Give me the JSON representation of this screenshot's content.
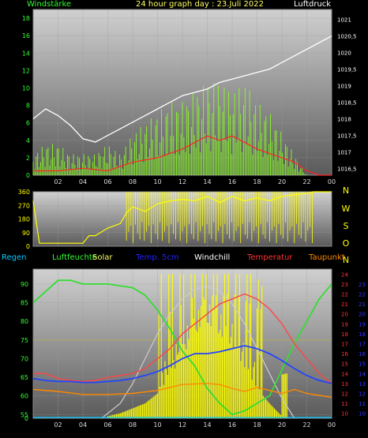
{
  "header": {
    "left": "Windstärke",
    "center": "24 hour graph day : 23.Juli 2022",
    "right": "Luftdruck"
  },
  "legend": [
    {
      "label": "Regen",
      "color": "#00c8ff"
    },
    {
      "label": "Luftfeuchte",
      "color": "#33ff33"
    },
    {
      "label": "Solar",
      "color": "#ffff66"
    },
    {
      "label": "Temp. 5cm",
      "color": "#2222ff"
    },
    {
      "label": "Windchill",
      "color": "#ffffff"
    },
    {
      "label": "Temperatur",
      "color": "#ff3333"
    },
    {
      "label": "Taupunkt",
      "color": "#ff8800"
    }
  ],
  "chart_data": [
    {
      "type": "line",
      "name": "wind-pressure",
      "xticks": [
        "02",
        "04",
        "06",
        "08",
        "10",
        "12",
        "14",
        "16",
        "18",
        "20",
        "22",
        "00"
      ],
      "y_left_ticks": [
        "0",
        "2",
        "4",
        "6",
        "8",
        "10",
        "12",
        "14",
        "16",
        "18"
      ],
      "y_right_ticks": [
        "1016,5",
        "1017",
        "1017,5",
        "1018",
        "1018,5",
        "1019",
        "1019,5",
        "1020",
        "1020,5",
        "1021"
      ],
      "ylim_left": [
        0,
        19
      ],
      "ylim_right": [
        1016.3,
        1021.3
      ],
      "series": [
        {
          "name": "Windstärke",
          "color": "#88ff22",
          "axis": "left",
          "x": [
            0,
            1,
            2,
            3,
            4,
            5,
            6,
            7,
            8,
            9,
            10,
            11,
            12,
            13,
            14,
            15,
            16,
            17,
            18,
            19,
            20,
            21,
            22,
            23,
            24
          ],
          "y": [
            2,
            3,
            3,
            2,
            2,
            2,
            3,
            2,
            4,
            5,
            6,
            7,
            7,
            8,
            9,
            9,
            8,
            9,
            7,
            6,
            4,
            2,
            0,
            0,
            0
          ]
        },
        {
          "name": "Windstärke avg",
          "color": "#ff2222",
          "axis": "left",
          "x": [
            0,
            2,
            4,
            6,
            8,
            10,
            12,
            14,
            15,
            16,
            18,
            19,
            20,
            21,
            22,
            23,
            24
          ],
          "y": [
            0.5,
            0.5,
            0.8,
            0.5,
            1.5,
            2,
            3,
            4.5,
            4,
            4.5,
            3,
            2.5,
            2,
            1.5,
            0.5,
            0,
            0
          ]
        },
        {
          "name": "Luftdruck",
          "color": "#ffffff",
          "axis": "right",
          "x": [
            0,
            1,
            2,
            3,
            4,
            5,
            6,
            7,
            8,
            9,
            10,
            11,
            12,
            13,
            14,
            15,
            16,
            17,
            18,
            19,
            20,
            21,
            22,
            23,
            24
          ],
          "y": [
            1018,
            1018.3,
            1018.1,
            1017.8,
            1017.4,
            1017.3,
            1017.5,
            1017.7,
            1017.9,
            1018.1,
            1018.3,
            1018.5,
            1018.7,
            1018.8,
            1018.9,
            1019.1,
            1019.2,
            1019.3,
            1019.4,
            1019.5,
            1019.7,
            1019.9,
            1020.1,
            1020.3,
            1020.5
          ]
        }
      ]
    },
    {
      "type": "line",
      "name": "wind-direction",
      "y_left_ticks": [
        "0",
        "90",
        "180",
        "270",
        "360"
      ],
      "y_right_ticks": [
        "N",
        "W",
        "S",
        "O",
        "N"
      ],
      "ylim": [
        0,
        360
      ],
      "series": [
        {
          "name": "Windrichtung",
          "color": "#ffff00",
          "x": [
            0,
            0.5,
            2,
            4,
            4.5,
            5,
            6,
            7,
            7.5,
            8,
            9,
            10,
            11,
            12,
            13,
            14,
            15,
            16,
            17,
            18,
            19,
            20,
            21,
            22,
            22.5,
            24
          ],
          "y": [
            300,
            20,
            20,
            20,
            70,
            70,
            120,
            150,
            220,
            260,
            230,
            280,
            300,
            310,
            300,
            330,
            290,
            330,
            300,
            320,
            300,
            330,
            340,
            350,
            360,
            360
          ]
        }
      ]
    },
    {
      "type": "line",
      "name": "temperature-humidity",
      "y_left_ticks": [
        "0",
        "55",
        "60",
        "65",
        "70",
        "75",
        "80",
        "85",
        "90"
      ],
      "y_right_ticks_red": [
        "10",
        "11",
        "12",
        "13",
        "14",
        "15",
        "16",
        "17",
        "18",
        "19",
        "20",
        "21",
        "22",
        "23",
        "24"
      ],
      "y_right_ticks_blue": [
        "10",
        "11",
        "12",
        "13",
        "14",
        "15",
        "16",
        "17",
        "18",
        "19",
        "20",
        "21",
        "22",
        "23"
      ],
      "ylim_humidity": [
        54,
        94
      ],
      "ylim_temp": [
        9.5,
        24.5
      ],
      "series": [
        {
          "name": "Luftfeuchte",
          "color": "#33dd33",
          "x": [
            0,
            2,
            3,
            4,
            6,
            8,
            9,
            10,
            11,
            12,
            13,
            14,
            15,
            16,
            17,
            18,
            19,
            20,
            21,
            22,
            23,
            24
          ],
          "y": [
            85,
            91,
            91,
            90,
            90,
            89,
            87,
            83,
            78,
            72,
            68,
            62,
            58,
            55,
            56,
            58,
            60,
            67,
            74,
            80,
            86,
            90
          ]
        },
        {
          "name": "Temperatur",
          "color": "#ff4444",
          "x": [
            0,
            1,
            2,
            3,
            4,
            5,
            6,
            7,
            8,
            9,
            10,
            11,
            12,
            13,
            14,
            15,
            16,
            17,
            18,
            19,
            20,
            21,
            22,
            23,
            24
          ],
          "y": [
            14,
            14,
            13.5,
            13.3,
            13.2,
            13.3,
            13.6,
            13.8,
            14,
            14.5,
            15.5,
            16.5,
            18,
            19,
            20,
            21,
            21.5,
            22,
            21.5,
            20.5,
            19,
            17,
            15.5,
            14,
            13
          ]
        },
        {
          "name": "Temp. 5cm",
          "color": "#2244ff",
          "x": [
            0,
            1,
            2,
            3,
            4,
            5,
            6,
            7,
            8,
            9,
            10,
            11,
            12,
            13,
            14,
            15,
            16,
            17,
            18,
            19,
            20,
            21,
            22,
            23,
            24
          ],
          "y": [
            13.5,
            13.3,
            13.2,
            13.2,
            13.1,
            13.1,
            13.2,
            13.3,
            13.5,
            13.8,
            14.2,
            14.8,
            15.5,
            16,
            16,
            16.2,
            16.5,
            16.8,
            16.5,
            16,
            15.3,
            14.5,
            13.8,
            13.3,
            13
          ]
        },
        {
          "name": "Taupunkt",
          "color": "#ff8800",
          "x": [
            0,
            2,
            4,
            6,
            8,
            10,
            12,
            14,
            15,
            16,
            17,
            18,
            19,
            20,
            21,
            22,
            23,
            24
          ],
          "y": [
            12.4,
            12.2,
            11.9,
            11.9,
            12,
            12.3,
            12.9,
            13,
            12.9,
            12.5,
            12.2,
            12.6,
            12.3,
            12,
            12.4,
            12,
            11.8,
            11.6
          ]
        },
        {
          "name": "Solar",
          "color": "#ffff00",
          "x": [
            6,
            7,
            8,
            9,
            10,
            11,
            12,
            13,
            14,
            15,
            16,
            17,
            18,
            19,
            20
          ],
          "y": [
            0.2,
            0.5,
            1,
            1.5,
            2.5,
            4,
            6,
            8,
            9,
            8,
            7,
            5,
            3,
            1.5,
            0.2
          ]
        },
        {
          "name": "Solar max",
          "color": "#cccccc",
          "x": [
            5.5,
            7,
            8,
            9,
            10,
            11,
            12,
            13,
            14,
            15,
            16,
            17,
            18,
            19,
            20,
            21
          ],
          "y": [
            0,
            1.5,
            3.5,
            6,
            8.5,
            10.5,
            12,
            13,
            13.2,
            12.8,
            11.5,
            9.5,
            7,
            4.5,
            2,
            0
          ]
        }
      ]
    }
  ]
}
